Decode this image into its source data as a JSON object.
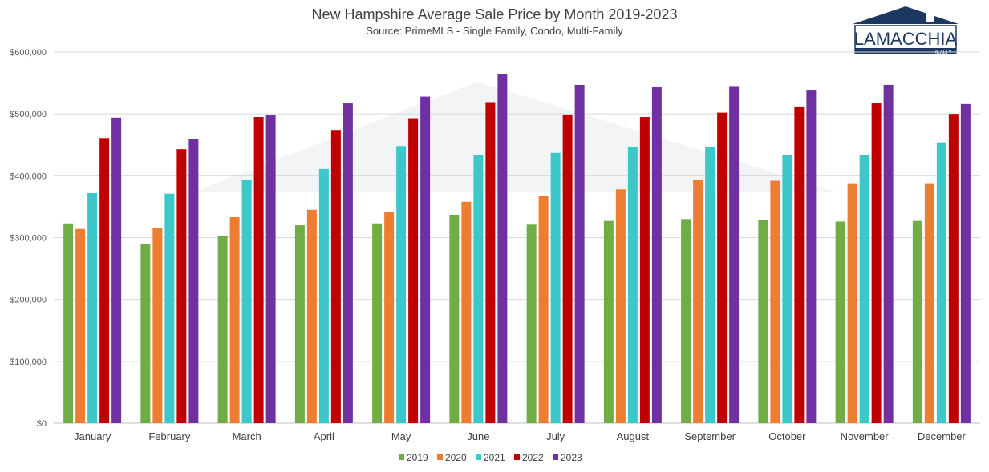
{
  "logo": {
    "text": "LAMACCHIA",
    "subtext": "REALTY",
    "color": "#1c3860"
  },
  "chart_data": {
    "type": "bar",
    "title": "New Hampshire Average Sale Price by Month 2019-2023",
    "subtitle": "Source: PrimeMLS - Single Family, Condo, Multi-Family",
    "categories": [
      "January",
      "February",
      "March",
      "April",
      "May",
      "June",
      "July",
      "August",
      "September",
      "October",
      "November",
      "December"
    ],
    "series": [
      {
        "name": "2019",
        "color": "#70ad47",
        "values": [
          323000,
          289000,
          303000,
          320000,
          323000,
          337000,
          321000,
          327000,
          330000,
          328000,
          326000,
          327000
        ]
      },
      {
        "name": "2020",
        "color": "#ed7d31",
        "values": [
          314000,
          315000,
          333000,
          345000,
          342000,
          358000,
          368000,
          378000,
          393000,
          392000,
          388000,
          388000
        ]
      },
      {
        "name": "2021",
        "color": "#3cc8c8",
        "values": [
          372000,
          371000,
          393000,
          411000,
          448000,
          433000,
          437000,
          446000,
          446000,
          434000,
          433000,
          454000
        ]
      },
      {
        "name": "2022",
        "color": "#c00000",
        "values": [
          461000,
          443000,
          495000,
          474000,
          493000,
          519000,
          499000,
          495000,
          502000,
          512000,
          517000,
          500000
        ]
      },
      {
        "name": "2023",
        "color": "#7030a0",
        "values": [
          494000,
          460000,
          498000,
          517000,
          528000,
          565000,
          547000,
          544000,
          545000,
          539000,
          547000,
          516000
        ]
      }
    ],
    "y_ticks": [
      "$0",
      "$100,000",
      "$200,000",
      "$300,000",
      "$400,000",
      "$500,000",
      "$600,000"
    ],
    "ylim": [
      0,
      600000
    ],
    "grid": true,
    "legend_position": "bottom"
  }
}
